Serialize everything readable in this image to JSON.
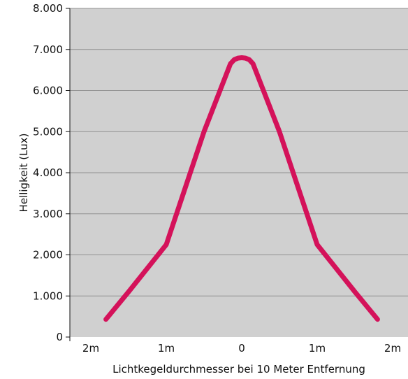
{
  "chart_data": {
    "type": "line",
    "title": "",
    "xlabel": "Lichtkegeldurchmesser bei 10 Meter Entfernung",
    "ylabel": "Helligkeit (Lux)",
    "x_tick_labels": [
      "2m",
      "1m",
      "0",
      "1m",
      "2m"
    ],
    "y_tick_labels": [
      "0",
      "1.000",
      "2.000",
      "3.000",
      "4.000",
      "5.000",
      "6.000",
      "7.000",
      "8.000"
    ],
    "xlim": [
      -2,
      2
    ],
    "ylim": [
      0,
      8000
    ],
    "grid": true,
    "legend": "none",
    "colors": {
      "plot_background": "#d0d0d0",
      "gridline": "#909090",
      "line": "#d4125a"
    },
    "series": [
      {
        "x": [
          -1.8,
          -1.5,
          -1.0,
          -0.5,
          -0.15,
          -0.1,
          -0.05,
          0.0,
          0.05,
          0.1,
          0.15,
          0.5,
          1.0,
          1.5,
          1.8
        ],
        "y": [
          430,
          1100,
          2250,
          5000,
          6650,
          6750,
          6790,
          6800,
          6790,
          6750,
          6650,
          5000,
          2250,
          1100,
          430
        ]
      }
    ]
  }
}
